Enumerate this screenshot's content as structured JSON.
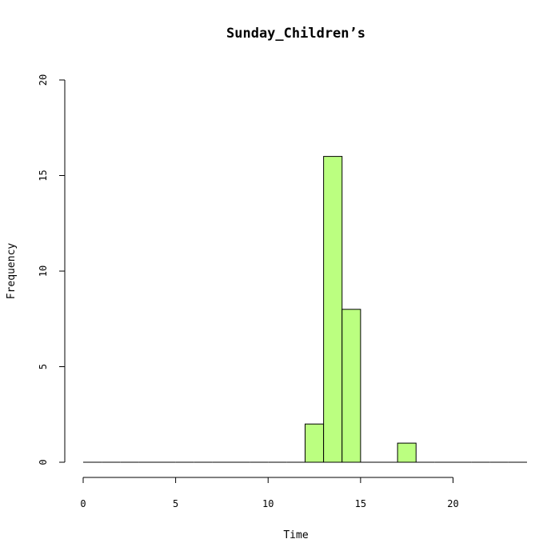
{
  "chart_data": {
    "type": "bar",
    "title": "Sunday_Children’s",
    "xlabel": "Time",
    "ylabel": "Frequency",
    "xlim": [
      0,
      24
    ],
    "ylim": [
      0,
      20
    ],
    "x_ticks": [
      0,
      5,
      10,
      15,
      20
    ],
    "y_ticks": [
      0,
      5,
      10,
      15,
      20
    ],
    "bin_width": 1,
    "bins": [
      {
        "start": 0,
        "count": 0
      },
      {
        "start": 1,
        "count": 0
      },
      {
        "start": 2,
        "count": 0
      },
      {
        "start": 3,
        "count": 0
      },
      {
        "start": 4,
        "count": 0
      },
      {
        "start": 5,
        "count": 0
      },
      {
        "start": 6,
        "count": 0
      },
      {
        "start": 7,
        "count": 0
      },
      {
        "start": 8,
        "count": 0
      },
      {
        "start": 9,
        "count": 0
      },
      {
        "start": 10,
        "count": 0
      },
      {
        "start": 11,
        "count": 0
      },
      {
        "start": 12,
        "count": 2
      },
      {
        "start": 13,
        "count": 16
      },
      {
        "start": 14,
        "count": 8
      },
      {
        "start": 15,
        "count": 0
      },
      {
        "start": 16,
        "count": 0
      },
      {
        "start": 17,
        "count": 1
      },
      {
        "start": 18,
        "count": 0
      },
      {
        "start": 19,
        "count": 0
      },
      {
        "start": 20,
        "count": 0
      },
      {
        "start": 21,
        "count": 0
      },
      {
        "start": 22,
        "count": 0
      },
      {
        "start": 23,
        "count": 0
      }
    ],
    "bar_color": "#bbff80",
    "grid": false,
    "legend": "none"
  }
}
